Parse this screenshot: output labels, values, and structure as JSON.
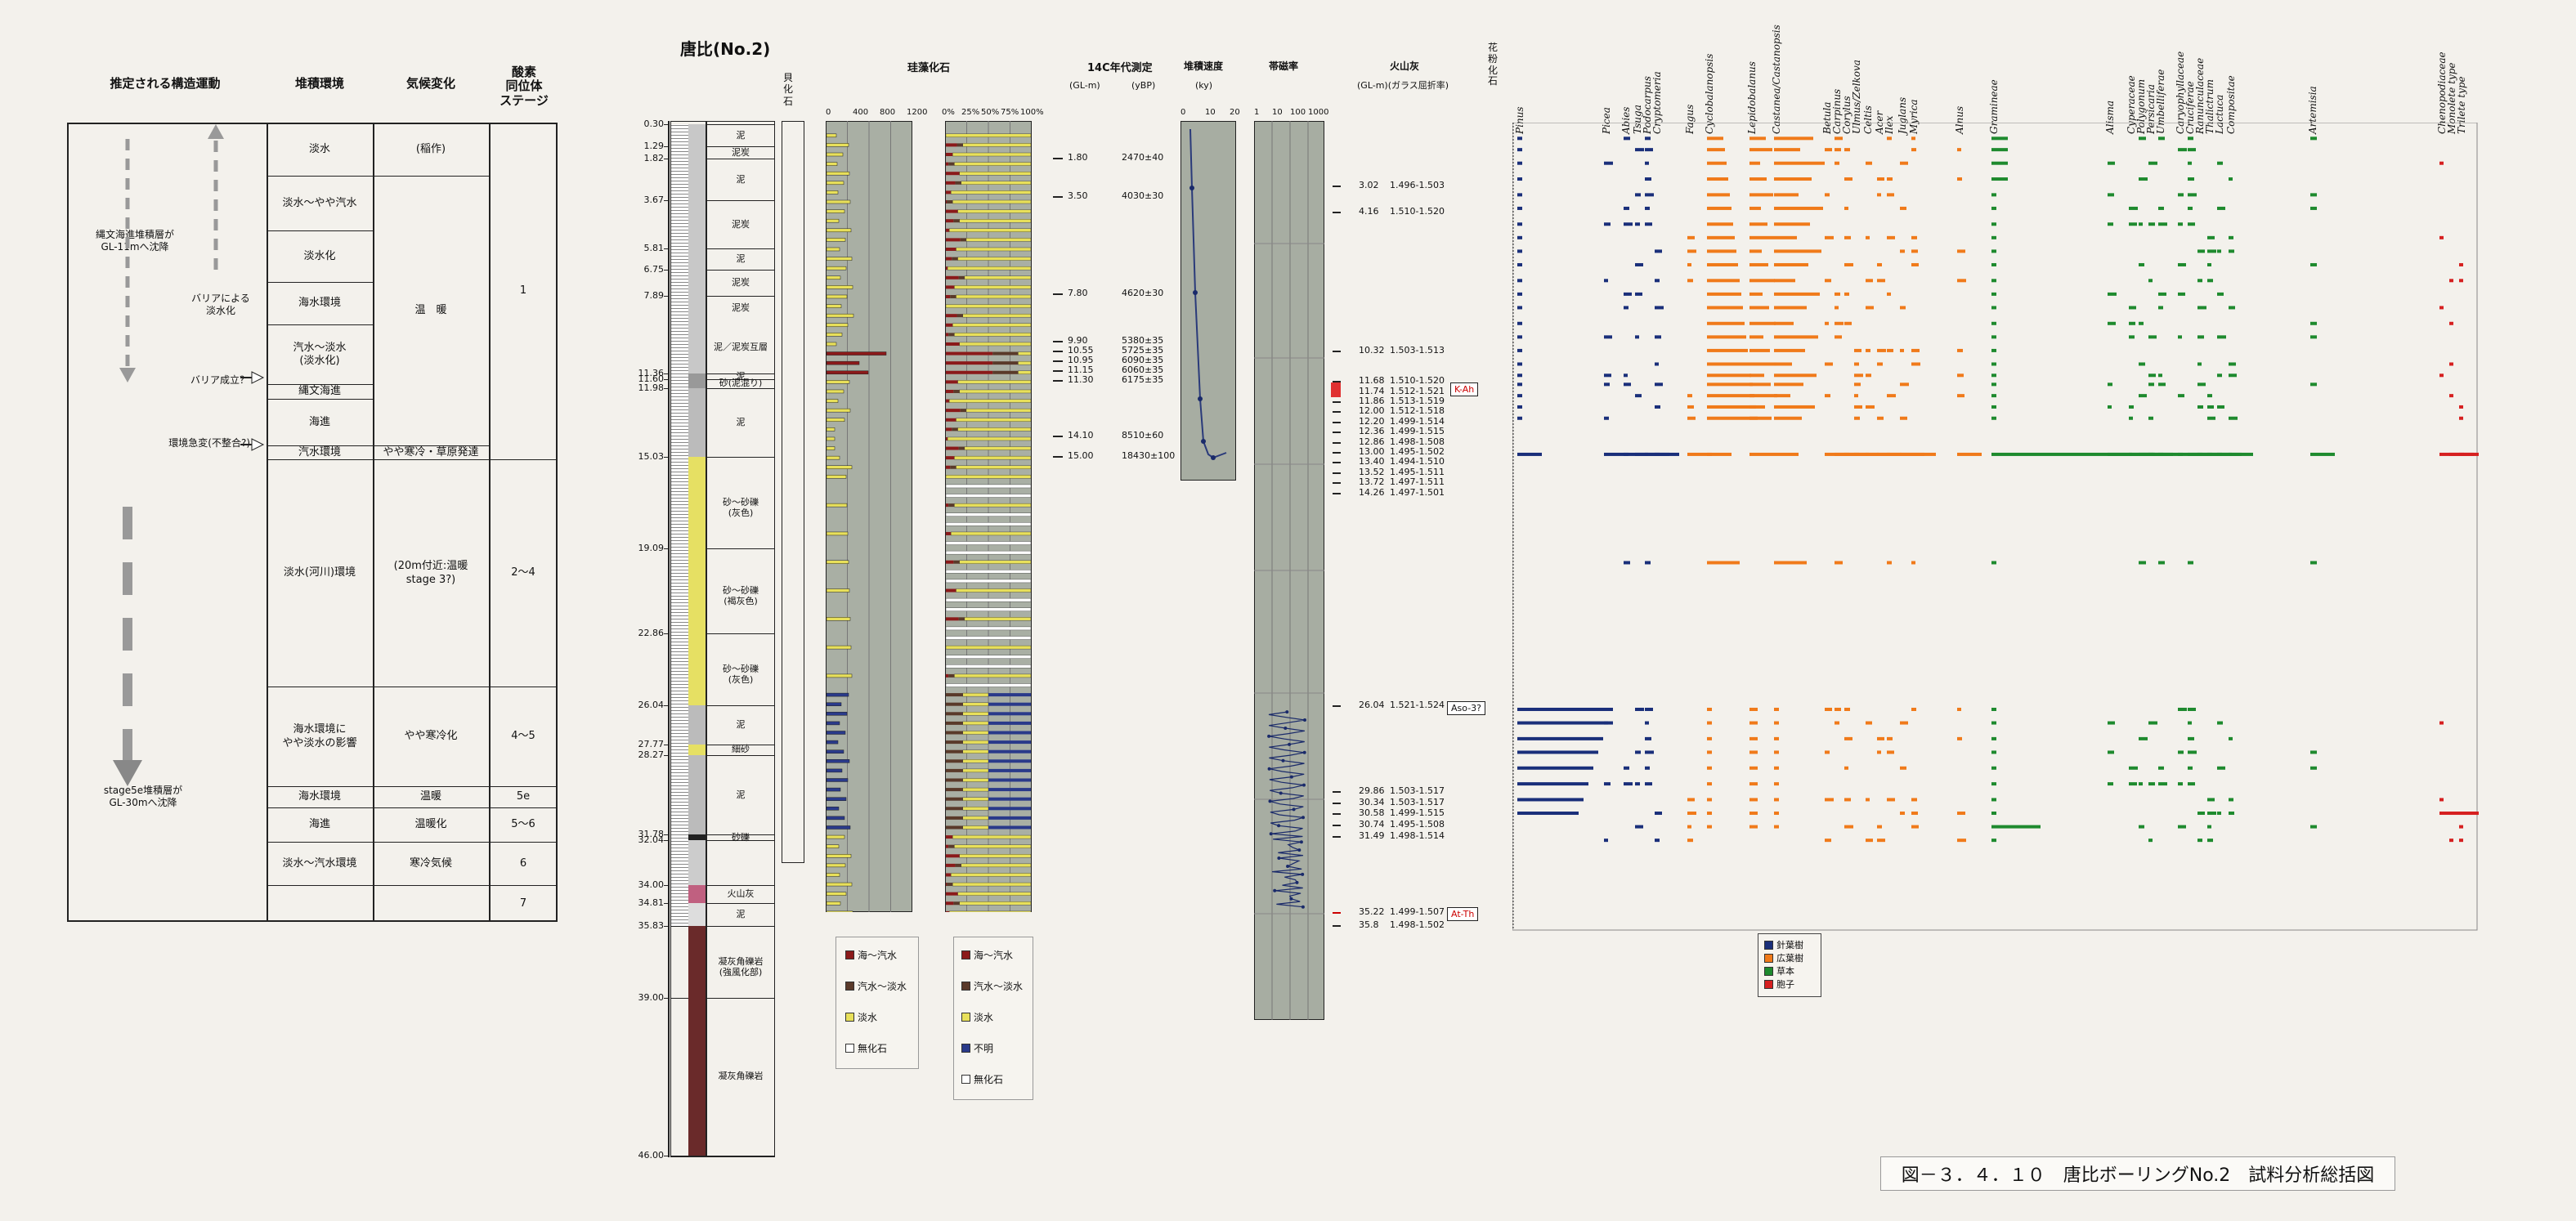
{
  "left_table": {
    "headers": [
      "推定される構造運動",
      "堆積環境",
      "気候変化",
      "酸素\n同位体\nステージ"
    ],
    "environments": [
      "淡水",
      "淡水～やや汽水",
      "淡水化",
      "海水環境",
      "汽水～淡水\n(淡水化)",
      "縄文海進",
      "海進",
      "汽水環境",
      "淡水(河川)環境",
      "海水環境に\nやや淡水の影響",
      "海水環境",
      "海進",
      "淡水～汽水環境"
    ],
    "climates": [
      "(稲作)",
      "温　暖",
      "やや寒冷・草原発達",
      "(20m付近:温暖\nstage 3?)",
      "やや寒冷化",
      "温暖",
      "温暖化",
      "寒冷気候"
    ],
    "stages": [
      "1",
      "2～4",
      "4～5",
      "5e",
      "5～6",
      "6",
      "7"
    ],
    "notes": [
      "縄文海進堆積層が\nGL-11mへ沈降",
      "バリアによる\n淡水化",
      "バリア成立？",
      "環境急変(不整合?)",
      "stage5e堆積層が\nGL-30mへ沈降"
    ]
  },
  "column": {
    "title": "唐比(No.2)",
    "shell_label": "貝\n化\n石",
    "depths": [
      "0.30",
      "1.29",
      "1.82",
      "3.67",
      "5.81",
      "6.75",
      "7.89",
      "11.36",
      "11.60",
      "11.98",
      "15.03",
      "19.09",
      "22.86",
      "26.04",
      "27.77",
      "28.27",
      "31.78",
      "32.04",
      "34.00",
      "34.81",
      "35.83",
      "39.00",
      "46.00"
    ],
    "lithology": [
      "泥",
      "泥炭",
      "泥",
      "泥炭",
      "泥",
      "泥炭",
      "泥炭",
      "泥／泥炭互層",
      "泥",
      "砂(泥混り)",
      "泥",
      "砂～砂礫\n(灰色)",
      "砂～砂礫\n(褐灰色)",
      "砂～砂礫\n(灰色)",
      "泥",
      "細砂",
      "泥",
      "砂礫",
      "火山灰",
      "泥",
      "凝灰角礫岩\n(強風化部)",
      "凝灰角礫岩"
    ]
  },
  "diatom": {
    "title": "珪藻化石",
    "count_ticks": [
      "0",
      "400",
      "800",
      "1200"
    ],
    "pct_ticks": [
      "0%",
      "25%",
      "50%",
      "75%",
      "100%"
    ],
    "legend_a": [
      "海～汽水",
      "汽水～淡水",
      "淡水",
      "無化石"
    ],
    "legend_b": [
      "海～汽水",
      "汽水～淡水",
      "淡水",
      "不明",
      "無化石"
    ],
    "colors": {
      "marine": "#8b1a1a",
      "brackish": "#5a3a2a",
      "fresh": "#e8e05a",
      "unknown": "#2a3a8a",
      "none": "#ffffff"
    }
  },
  "c14": {
    "title": "14C年代測定",
    "col_a": "(GL-m)",
    "col_b": "(yBP)",
    "rows": [
      [
        "1.80",
        "2470±40"
      ],
      [
        "3.50",
        "4030±30"
      ],
      [
        "7.80",
        "4620±30"
      ],
      [
        "9.90",
        "5380±35"
      ],
      [
        "10.55",
        "5725±35"
      ],
      [
        "10.95",
        "6090±35"
      ],
      [
        "11.15",
        "6060±35"
      ],
      [
        "11.30",
        "6175±35"
      ],
      [
        "14.10",
        "8510±60"
      ],
      [
        "15.00",
        "18430±100"
      ]
    ]
  },
  "sedrate": {
    "title": "堆積速度",
    "unit": "(ky)",
    "ticks": [
      "0",
      "10",
      "20"
    ]
  },
  "suscept": {
    "title": "帯磁率",
    "ticks": [
      "1",
      "10",
      "100",
      "1000"
    ]
  },
  "tephra": {
    "title": "火山灰",
    "unit": "(GL-m)(ガラス屈折率)",
    "rows": [
      [
        "3.02",
        "1.496-1.503"
      ],
      [
        "4.16",
        "1.510-1.520"
      ],
      [
        "10.32",
        "1.503-1.513"
      ],
      [
        "11.68",
        "1.510-1.520"
      ],
      [
        "11.74",
        "1.512-1.521"
      ],
      [
        "11.86",
        "1.513-1.519"
      ],
      [
        "12.00",
        "1.512-1.518"
      ],
      [
        "12.20",
        "1.499-1.514"
      ],
      [
        "12.36",
        "1.499-1.515"
      ],
      [
        "12.86",
        "1.498-1.508"
      ],
      [
        "13.00",
        "1.495-1.502"
      ],
      [
        "13.40",
        "1.494-1.510"
      ],
      [
        "13.52",
        "1.495-1.511"
      ],
      [
        "13.72",
        "1.497-1.511"
      ],
      [
        "14.26",
        "1.497-1.501"
      ],
      [
        "26.04",
        "1.521-1.524"
      ],
      [
        "29.86",
        "1.503-1.517"
      ],
      [
        "30.34",
        "1.503-1.517"
      ],
      [
        "30.58",
        "1.499-1.515"
      ],
      [
        "30.74",
        "1.495-1.508"
      ],
      [
        "31.49",
        "1.498-1.514"
      ],
      [
        "35.22",
        "1.499-1.507"
      ],
      [
        "35.8",
        "1.498-1.502"
      ]
    ],
    "boxes": [
      "K-Ah",
      "Aso-3?",
      "At-Th"
    ]
  },
  "pollen": {
    "side_label": "花\n粉\n化\n石",
    "taxa": [
      "Pinus",
      "Picea",
      "Abies",
      "Tsuga",
      "Podocarpus",
      "Cryptomeria",
      "Fagus",
      "Cyclobalanopsis",
      "Lepidobalanus",
      "Castanea/Castanopsis",
      "Betula",
      "Carpinus",
      "Corylus",
      "Ulmus/Zelkova",
      "Celtis",
      "Acer",
      "Ilex",
      "Juglans",
      "Myrica",
      "Alnus",
      "Gramineae",
      "Alisma",
      "Cyperaceae",
      "Polygonum",
      "Persicaria",
      "Umbelliferae",
      "Caryophyllaceae",
      "Cruciferae",
      "Ranunculaceae",
      "Thalictrum",
      "Lactuca",
      "Compositae",
      "Artemisia",
      "Chenopodiaceae",
      "Monolete type",
      "Trilete type"
    ],
    "legend": [
      "針葉樹",
      "広葉樹",
      "草本",
      "胞子"
    ],
    "colors": [
      "#1a2f7a",
      "#f07a1a",
      "#1e8a2e",
      "#d62020"
    ]
  },
  "caption": "図－３．４．１０　唐比ボーリングNo.2　試料分析総括図"
}
